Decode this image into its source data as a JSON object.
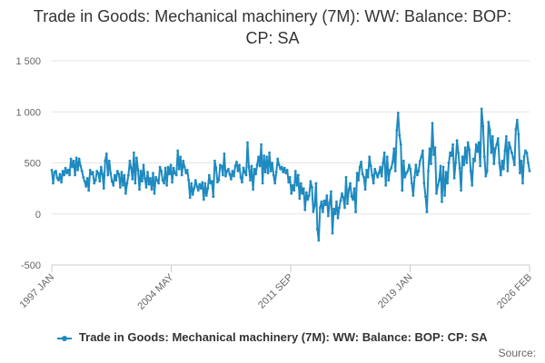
{
  "chart_data": {
    "type": "line",
    "title": "Trade in Goods: Mechanical machinery (7M): WW: Balance: BOP: CP: SA",
    "xlabel": "",
    "ylabel": "",
    "x_tick_labels": [
      "1997 JAN",
      "2004 MAY",
      "2011 SEP",
      "2019 JAN",
      "2026 FEB"
    ],
    "y_tick_labels": [
      "1 500",
      "1 000",
      "500",
      "0",
      "-500"
    ],
    "y_ticks": [
      1500,
      1000,
      500,
      0,
      -500
    ],
    "ylim": [
      -500,
      1500
    ],
    "xlim": [
      0,
      349
    ],
    "grid": true,
    "legend_position": "bottom",
    "series_color": "#1f8ac0",
    "series": [
      {
        "name": "Trade in Goods: Mechanical machinery (7M): WW: Balance: BOP: CP: SA",
        "monthly": true,
        "start": "1997 JAN",
        "segments": [
          {
            "from": 0,
            "to": 12,
            "values": [
              430,
              300,
              410,
              420,
              350,
              330,
              390,
              310,
              420,
              380,
              450,
              400,
              430
            ]
          },
          {
            "from": 12,
            "to": 22,
            "values": [
              430,
              380,
              540,
              460,
              520,
              380,
              550,
              430,
              540,
              470,
              420
            ]
          },
          {
            "from": 22,
            "to": 32,
            "values": [
              420,
              360,
              320,
              270,
              350,
              230,
              430,
              390,
              410,
              300,
              330
            ]
          },
          {
            "from": 32,
            "to": 44,
            "values": [
              330,
              420,
              400,
              320,
              460,
              390,
              250,
              520,
              590,
              380,
              520,
              400,
              320
            ]
          },
          {
            "from": 44,
            "to": 56,
            "values": [
              320,
              280,
              380,
              330,
              420,
              390,
              260,
              410,
              280,
              380,
              200,
              300,
              380
            ]
          },
          {
            "from": 56,
            "to": 68,
            "values": [
              380,
              520,
              450,
              340,
              600,
              300,
              550,
              430,
              240,
              420,
              320,
              480,
              350
            ]
          },
          {
            "from": 68,
            "to": 80,
            "values": [
              350,
              260,
              410,
              290,
              350,
              240,
              400,
              200,
              360,
              330,
              300,
              460,
              420
            ]
          },
          {
            "from": 80,
            "to": 90,
            "values": [
              420,
              330,
              300,
              450,
              280,
              460,
              390,
              480,
              310,
              450,
              400
            ]
          },
          {
            "from": 90,
            "to": 100,
            "values": [
              400,
              380,
              620,
              440,
              560,
              380,
              520,
              460,
              400,
              430,
              330
            ]
          },
          {
            "from": 100,
            "to": 108,
            "values": [
              330,
              160,
              300,
              190,
              250,
              330,
              270,
              230,
              290
            ]
          },
          {
            "from": 108,
            "to": 118,
            "values": [
              290,
              250,
              310,
              140,
              300,
              180,
              250,
              380,
              300,
              320,
              170
            ]
          },
          {
            "from": 118,
            "to": 130,
            "values": [
              170,
              520,
              450,
              310,
              330,
              480,
              470,
              380,
              590,
              370,
              420,
              440,
              390
            ]
          },
          {
            "from": 130,
            "to": 140,
            "values": [
              390,
              340,
              420,
              370,
              470,
              510,
              420,
              480,
              360,
              310,
              450
            ]
          },
          {
            "from": 140,
            "to": 150,
            "values": [
              450,
              410,
              380,
              700,
              460,
              330,
              470,
              240,
              440,
              390,
              480
            ]
          },
          {
            "from": 150,
            "to": 160,
            "values": [
              480,
              560,
              470,
              680,
              300,
              570,
              410,
              560,
              400,
              600,
              420
            ]
          },
          {
            "from": 160,
            "to": 170,
            "values": [
              420,
              500,
              380,
              300,
              410,
              540,
              480,
              440,
              460,
              410,
              450
            ]
          },
          {
            "from": 170,
            "to": 180,
            "values": [
              450,
              400,
              430,
              310,
              360,
              200,
              280,
              230,
              420,
              280,
              380
            ]
          },
          {
            "from": 180,
            "to": 190,
            "values": [
              380,
              150,
              300,
              200,
              250,
              40,
              210,
              140,
              180,
              320,
              260
            ]
          },
          {
            "from": 190,
            "to": 200,
            "values": [
              260,
              20,
              80,
              300,
              -150,
              -260,
              60,
              120,
              20,
              130,
              90
            ]
          },
          {
            "from": 200,
            "to": 210,
            "values": [
              90,
              180,
              -20,
              110,
              220,
              -190,
              50,
              0,
              120,
              -40,
              60
            ]
          },
          {
            "from": 210,
            "to": 222,
            "values": [
              60,
              130,
              200,
              160,
              60,
              360,
              100,
              240,
              300,
              170,
              140,
              250,
              20
            ]
          },
          {
            "from": 222,
            "to": 234,
            "values": [
              20,
              400,
              330,
              460,
              510,
              390,
              360,
              240,
              430,
              360,
              560,
              470,
              380
            ]
          },
          {
            "from": 234,
            "to": 246,
            "values": [
              380,
              300,
              440,
              400,
              360,
              400,
              460,
              370,
              500,
              600,
              280,
              560,
              330
            ]
          },
          {
            "from": 246,
            "to": 256,
            "values": [
              330,
              430,
              450,
              510,
              640,
              420,
              820,
              990,
              770,
              680,
              230
            ]
          },
          {
            "from": 256,
            "to": 266,
            "values": [
              230,
              520,
              360,
              400,
              420,
              480,
              440,
              300,
              180,
              360,
              480
            ]
          },
          {
            "from": 266,
            "to": 274,
            "values": [
              480,
              380,
              420,
              520,
              560,
              620,
              300,
              170,
              20
            ]
          },
          {
            "from": 274,
            "to": 282,
            "values": [
              20,
              420,
              640,
              490,
              890,
              580,
              650,
              200,
              280
            ]
          },
          {
            "from": 282,
            "to": 290,
            "values": [
              280,
              330,
              470,
              120,
              460,
              180,
              410,
              300,
              500
            ]
          },
          {
            "from": 290,
            "to": 300,
            "values": [
              500,
              600,
              570,
              680,
              350,
              500,
              720,
              600,
              450,
              230,
              560
            ]
          },
          {
            "from": 300,
            "to": 312,
            "values": [
              560,
              480,
              650,
              500,
              700,
              630,
              420,
              280,
              540,
              520,
              680,
              610,
              700
            ]
          },
          {
            "from": 312,
            "to": 324,
            "values": [
              700,
              470,
              1030,
              860,
              560,
              370,
              420,
              900,
              820,
              600,
              760,
              490,
              640
            ]
          },
          {
            "from": 324,
            "to": 336,
            "values": [
              640,
              680,
              740,
              500,
              380,
              520,
              440,
              620,
              760,
              420,
              700,
              650,
              600
            ]
          },
          {
            "from": 336,
            "to": 349,
            "values": [
              600,
              550,
              480,
              830,
              920,
              780,
              400,
              520,
              300,
              560,
              620,
              600,
              500,
              420
            ]
          }
        ]
      }
    ]
  },
  "legend": {
    "label": "Trade in Goods: Mechanical machinery (7M): WW: Balance: BOP: CP: SA"
  },
  "source": {
    "label": "Source:"
  }
}
